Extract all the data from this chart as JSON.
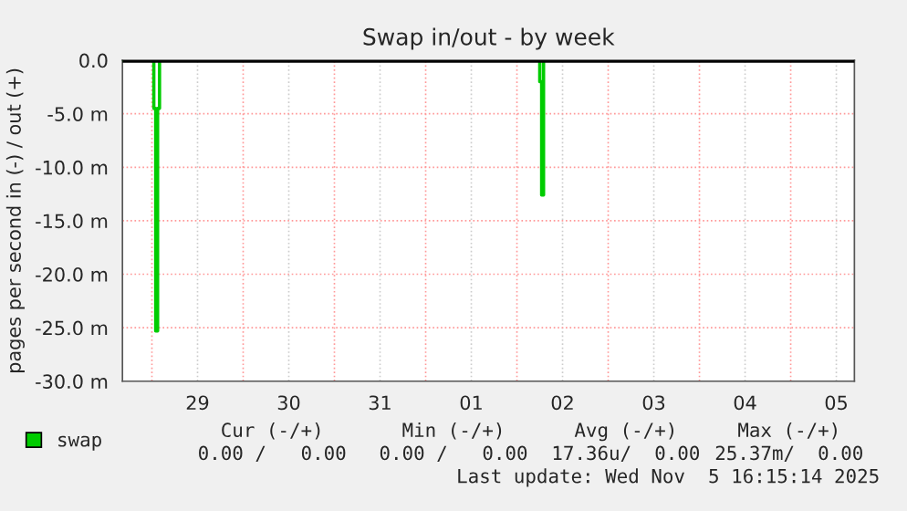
{
  "chart_data": {
    "type": "step",
    "title": "Swap in/out - by week",
    "ylabel": "pages per second in (-) / out (+)",
    "series": [
      {
        "name": "swap",
        "color": "#00cc00",
        "x": [
          "2025-10-28T16:30",
          "2025-10-29T00:30",
          "2025-10-29T01:00",
          "2025-10-29T01:30",
          "2025-10-29T02:00",
          "2025-11-02T06:00",
          "2025-11-02T06:30",
          "2025-11-02T07:00",
          "2025-11-05T16:15"
        ],
        "values": [
          0,
          -4.5,
          -25.3,
          -4.5,
          0,
          -2.0,
          -12.6,
          0,
          0
        ]
      }
    ],
    "xlim": [
      "2025-10-28T16:15",
      "2025-11-05T16:45"
    ],
    "xticks": [
      {
        "value": "2025-10-29T00:00",
        "label": null
      },
      {
        "value": "2025-10-29T12:00",
        "label": "29"
      },
      {
        "value": "2025-10-30T00:00",
        "label": null
      },
      {
        "value": "2025-10-30T12:00",
        "label": "30"
      },
      {
        "value": "2025-10-31T00:00",
        "label": null
      },
      {
        "value": "2025-10-31T12:00",
        "label": "31"
      },
      {
        "value": "2025-11-01T00:00",
        "label": null
      },
      {
        "value": "2025-11-01T12:00",
        "label": "01"
      },
      {
        "value": "2025-11-02T00:00",
        "label": null
      },
      {
        "value": "2025-11-02T12:00",
        "label": "02"
      },
      {
        "value": "2025-11-03T00:00",
        "label": null
      },
      {
        "value": "2025-11-03T12:00",
        "label": "03"
      },
      {
        "value": "2025-11-04T00:00",
        "label": null
      },
      {
        "value": "2025-11-04T12:00",
        "label": "04"
      },
      {
        "value": "2025-11-05T00:00",
        "label": null
      },
      {
        "value": "2025-11-05T12:00",
        "label": "05"
      }
    ],
    "ylim": [
      -30,
      0
    ],
    "yticks": [
      {
        "value": 0,
        "label": "0.0"
      },
      {
        "value": -5,
        "label": "-5.0 m"
      },
      {
        "value": -10,
        "label": "-10.0 m"
      },
      {
        "value": -15,
        "label": "-15.0 m"
      },
      {
        "value": -20,
        "label": "-20.0 m"
      },
      {
        "value": -25,
        "label": "-25.0 m"
      },
      {
        "value": -30,
        "label": "-30.0 m"
      }
    ],
    "ref_lines": [
      {
        "axis": "y",
        "value": 0,
        "color": "#000000"
      }
    ],
    "grid": true,
    "legend": "bottom left",
    "marker": "none",
    "line_style": "solid",
    "annotations": [
      "Cur (-/+)",
      "Min (-/+)",
      "Avg (-/+)",
      "Max (-/+)",
      "0.00 /   0.00",
      "0.00 /   0.00",
      "17.36u/  0.00",
      "25.37m/  0.00",
      "Last update: Wed Nov  5 16:15:14 2025"
    ]
  }
}
